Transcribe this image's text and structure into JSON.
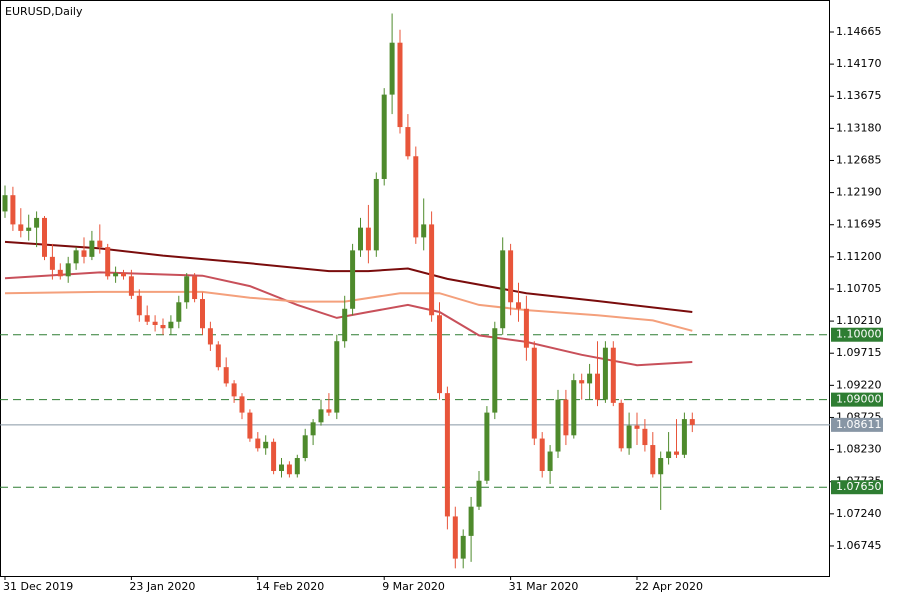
{
  "chart_data": {
    "type": "candlestick",
    "title": "EURUSD,Daily",
    "categories": [
      "31 Dec 2019",
      null,
      null,
      null,
      null,
      null,
      null,
      null,
      null,
      null,
      null,
      null,
      null,
      null,
      null,
      null,
      "23 Jan 2020",
      null,
      null,
      null,
      null,
      null,
      null,
      null,
      null,
      null,
      null,
      null,
      null,
      null,
      null,
      null,
      "14 Feb 2020",
      null,
      null,
      null,
      null,
      null,
      null,
      null,
      null,
      null,
      null,
      null,
      null,
      null,
      null,
      null,
      "9 Mar 2020",
      null,
      null,
      null,
      null,
      null,
      null,
      null,
      null,
      null,
      null,
      null,
      null,
      null,
      null,
      null,
      "31 Mar 2020",
      null,
      null,
      null,
      null,
      null,
      null,
      null,
      null,
      null,
      null,
      null,
      null,
      null,
      null,
      null,
      "22 Apr 2020",
      null,
      null,
      null,
      null,
      null,
      null,
      null
    ],
    "open": [
      1.119,
      1.1215,
      1.117,
      1.116,
      1.1165,
      1.118,
      1.112,
      1.11,
      1.109,
      1.111,
      1.113,
      1.112,
      1.1145,
      1.1135,
      1.109,
      1.1095,
      1.109,
      1.106,
      1.103,
      1.102,
      1.1015,
      1.101,
      1.102,
      1.105,
      1.109,
      1.1055,
      1.101,
      1.0985,
      1.095,
      1.0925,
      1.0905,
      1.088,
      1.084,
      1.0825,
      1.0835,
      1.079,
      1.08,
      1.0785,
      1.081,
      1.0845,
      1.0865,
      1.0885,
      1.088,
      1.099,
      1.104,
      1.113,
      1.1165,
      1.113,
      1.124,
      1.137,
      1.145,
      1.132,
      1.1275,
      1.115,
      1.117,
      1.103,
      1.091,
      1.072,
      1.0655,
      1.069,
      1.0735,
      1.0775,
      1.088,
      1.101,
      1.113,
      1.105,
      1.104,
      1.098,
      1.084,
      1.079,
      1.082,
      1.09,
      1.0845,
      1.093,
      1.0925,
      1.094,
      1.09,
      1.098,
      1.0895,
      1.0825,
      1.086,
      1.0855,
      1.083,
      1.0785,
      1.081,
      1.082,
      1.0815,
      1.087
    ],
    "high": [
      1.123,
      1.1228,
      1.1195,
      1.1185,
      1.119,
      1.1183,
      1.114,
      1.111,
      1.112,
      1.1135,
      1.115,
      1.116,
      1.117,
      1.114,
      1.1105,
      1.11,
      1.11,
      1.107,
      1.1045,
      1.103,
      1.1025,
      1.103,
      1.106,
      1.1095,
      1.1095,
      1.1065,
      1.102,
      1.099,
      1.0965,
      1.093,
      1.091,
      1.0885,
      1.085,
      1.0845,
      1.084,
      1.081,
      1.0805,
      1.0815,
      1.0855,
      1.087,
      1.09,
      1.091,
      1.1,
      1.106,
      1.114,
      1.118,
      1.12,
      1.125,
      1.138,
      1.1495,
      1.147,
      1.134,
      1.129,
      1.121,
      1.119,
      1.105,
      1.092,
      1.0735,
      1.07,
      1.075,
      1.079,
      1.089,
      1.102,
      1.115,
      1.114,
      1.108,
      1.106,
      1.099,
      1.085,
      1.083,
      1.0915,
      1.0915,
      1.094,
      1.094,
      1.0955,
      1.099,
      1.099,
      1.099,
      1.09,
      1.088,
      1.088,
      1.087,
      1.085,
      1.082,
      1.085,
      1.087,
      1.088,
      1.088
    ],
    "low": [
      1.118,
      1.116,
      1.115,
      1.1145,
      1.1135,
      1.1115,
      1.1085,
      1.1085,
      1.108,
      1.11,
      1.111,
      1.1115,
      1.1125,
      1.1085,
      1.108,
      1.1085,
      1.1055,
      1.102,
      1.1015,
      1.1005,
      1.1,
      1.1,
      1.101,
      1.104,
      1.105,
      1.1,
      1.0975,
      1.0945,
      1.092,
      1.0895,
      1.087,
      1.0835,
      1.082,
      1.0815,
      1.0785,
      1.078,
      1.078,
      1.078,
      1.0805,
      1.083,
      1.086,
      1.0875,
      1.087,
      1.098,
      1.103,
      1.112,
      1.111,
      1.112,
      1.123,
      1.134,
      1.131,
      1.127,
      1.114,
      1.113,
      1.102,
      1.09,
      1.07,
      1.064,
      1.064,
      1.065,
      1.073,
      1.077,
      1.087,
      1.1,
      1.103,
      1.102,
      1.096,
      1.083,
      1.078,
      1.077,
      1.081,
      1.083,
      1.084,
      1.09,
      1.09,
      1.089,
      1.0895,
      1.089,
      1.082,
      1.0815,
      1.083,
      1.082,
      1.078,
      1.073,
      1.08,
      1.081,
      1.081,
      1.085
    ],
    "close": [
      1.1215,
      1.117,
      1.116,
      1.1165,
      1.118,
      1.112,
      1.11,
      1.109,
      1.111,
      1.113,
      1.112,
      1.1145,
      1.1135,
      1.109,
      1.1095,
      1.109,
      1.106,
      1.103,
      1.102,
      1.1015,
      1.101,
      1.102,
      1.105,
      1.109,
      1.1055,
      1.101,
      1.0985,
      1.095,
      1.0925,
      1.0905,
      1.088,
      1.084,
      1.0825,
      1.0835,
      1.079,
      1.08,
      1.0785,
      1.081,
      1.0845,
      1.0865,
      1.0885,
      1.088,
      1.099,
      1.104,
      1.113,
      1.1165,
      1.113,
      1.124,
      1.137,
      1.145,
      1.132,
      1.1275,
      1.115,
      1.117,
      1.103,
      1.091,
      1.072,
      1.0655,
      1.069,
      1.0735,
      1.0775,
      1.088,
      1.101,
      1.113,
      1.105,
      1.104,
      1.098,
      1.084,
      1.079,
      1.082,
      1.09,
      1.0845,
      1.093,
      1.0925,
      1.094,
      1.09,
      1.098,
      1.0895,
      1.0825,
      1.086,
      1.0855,
      1.083,
      1.0785,
      1.081,
      1.082,
      1.0815,
      1.087,
      1.08611
    ],
    "up_color": "#4e8a2c",
    "down_color": "#e8553a",
    "ylim": [
      1.06282,
      1.15158
    ],
    "yticks": [
      1.14665,
      {
        "value": 1.1417,
        "label": "1.14170"
      },
      1.13675,
      {
        "value": 1.1318,
        "label": "1.13180"
      },
      1.12685,
      {
        "value": 1.1219,
        "label": "1.12190"
      },
      1.11695,
      {
        "value": 1.112,
        "label": "1.11200"
      },
      1.10705,
      {
        "value": 1.1021,
        "label": "1.10210"
      },
      1.09715,
      {
        "value": 1.0922,
        "label": "1.09220"
      },
      1.08725,
      {
        "value": 1.0823,
        "label": "1.08230"
      },
      1.07735,
      {
        "value": 1.0724,
        "label": "1.07240"
      },
      1.06745
    ],
    "moving_averages": [
      {
        "color": "#7a0c0c",
        "x": [
          0,
          12,
          20,
          31,
          41,
          46,
          51,
          56,
          66,
          75,
          87
        ],
        "values": [
          1.1143,
          1.1133,
          1.1122,
          1.111,
          1.1098,
          1.1098,
          1.1102,
          1.1086,
          1.1064,
          1.1052,
          1.1035
        ]
      },
      {
        "color": "#c8505a",
        "x": [
          0,
          12,
          25,
          31,
          37,
          42,
          46,
          51,
          55,
          60,
          66,
          73,
          80,
          87
        ],
        "values": [
          1.1087,
          1.1096,
          1.1091,
          1.1075,
          1.1046,
          1.1026,
          1.1035,
          1.1046,
          1.1035,
          1.0999,
          1.0989,
          1.0969,
          1.0953,
          1.0958
        ]
      },
      {
        "color": "#f4a07c",
        "x": [
          0,
          12,
          25,
          31,
          37,
          43,
          50,
          55,
          60,
          66,
          75,
          82,
          87
        ],
        "values": [
          1.1064,
          1.1066,
          1.1066,
          1.1057,
          1.1051,
          1.1051,
          1.1064,
          1.1064,
          1.1046,
          1.1038,
          1.103,
          1.1022,
          1.1006
        ]
      }
    ],
    "levels": [
      {
        "value": 1.1,
        "label": "1.10000"
      },
      {
        "value": 1.09,
        "label": "1.09000"
      },
      {
        "value": 1.0765,
        "label": "1.07650"
      }
    ],
    "level_color": "#2e7d32",
    "current_price": 1.08611,
    "current_color": "#8796a5"
  }
}
